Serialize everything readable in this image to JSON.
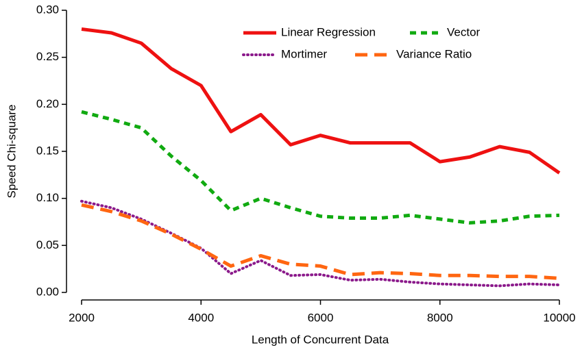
{
  "chart_data": {
    "type": "line",
    "xlabel": "Length of Concurrent Data",
    "ylabel": "Speed Chi-square",
    "x": [
      2000,
      2500,
      3000,
      3500,
      4000,
      4500,
      5000,
      5500,
      6000,
      6500,
      7000,
      7500,
      8000,
      8500,
      9000,
      9500,
      10000
    ],
    "series": [
      {
        "name": "Linear Regression",
        "color": "#ee1111",
        "style": "solid",
        "values": [
          0.28,
          0.276,
          0.265,
          0.238,
          0.22,
          0.171,
          0.189,
          0.157,
          0.167,
          0.159,
          0.159,
          0.159,
          0.139,
          0.144,
          0.155,
          0.149,
          0.127
        ]
      },
      {
        "name": "Vector",
        "color": "#11aa11",
        "style": "dashed",
        "values": [
          0.192,
          0.184,
          0.175,
          0.145,
          0.119,
          0.087,
          0.1,
          0.09,
          0.081,
          0.079,
          0.079,
          0.082,
          0.078,
          0.074,
          0.076,
          0.081,
          0.082
        ]
      },
      {
        "name": "Mortimer",
        "color": "#8b1a8b",
        "style": "dotted",
        "values": [
          0.097,
          0.09,
          0.078,
          0.063,
          0.047,
          0.02,
          0.034,
          0.018,
          0.019,
          0.013,
          0.014,
          0.011,
          0.009,
          0.008,
          0.007,
          0.009,
          0.008
        ]
      },
      {
        "name": "Variance Ratio",
        "color": "#ff6611",
        "style": "longdash",
        "values": [
          0.093,
          0.086,
          0.076,
          0.062,
          0.046,
          0.028,
          0.039,
          0.03,
          0.028,
          0.019,
          0.021,
          0.02,
          0.018,
          0.018,
          0.017,
          0.017,
          0.015
        ]
      }
    ],
    "xlim": [
      2000,
      10000
    ],
    "xticks": [
      2000,
      4000,
      6000,
      8000,
      10000
    ],
    "ylim": [
      0,
      0.3
    ],
    "yticks": [
      {
        "value": 0,
        "label": "0.00"
      },
      0.05,
      {
        "value": 0.1,
        "label": "0.10"
      },
      0.15,
      {
        "value": 0.2,
        "label": "0.20"
      },
      0.25,
      {
        "value": 0.3,
        "label": "0.30"
      }
    ],
    "legend": "top"
  }
}
